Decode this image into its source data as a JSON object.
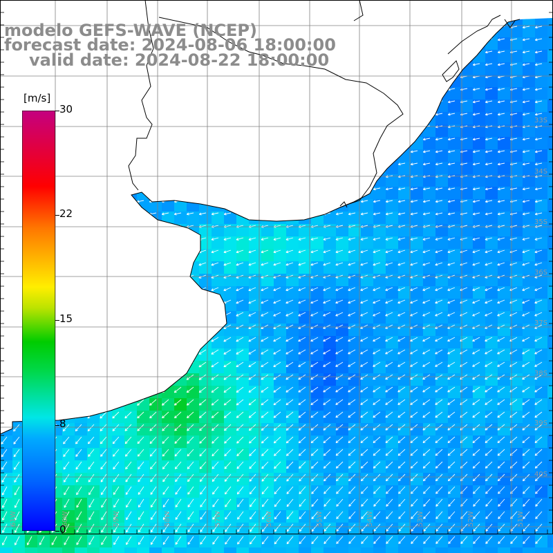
{
  "title": {
    "line1": "modelo GEFS-WAVE (NCEP)",
    "line2": "forecast date: 2024-08-06 18:00:00",
    "line3": "valid date: 2024-08-22 18:00:00"
  },
  "colorbar": {
    "unit": "[m/s]",
    "ticks": [
      {
        "label": "30",
        "value": 30
      },
      {
        "label": "22",
        "value": 22
      },
      {
        "label": "15",
        "value": 15
      },
      {
        "label": "8",
        "value": 8
      },
      {
        "label": "0",
        "value": 0
      }
    ],
    "min": 0,
    "max": 30
  },
  "map": {
    "latitude_labels": [
      "33S",
      "34S",
      "35S",
      "36S",
      "37S",
      "38S",
      "39S",
      "40S"
    ],
    "longitude_labels": [
      "61W",
      "60W",
      "59W",
      "58W",
      "57W",
      "56W",
      "55W",
      "54W",
      "53W",
      "52W",
      "51W"
    ],
    "colors": {
      "land": "#ffffff",
      "grid": "#808080",
      "coast": "#000000",
      "arrows": "#ffffff",
      "label": "#9a9a9a"
    }
  }
}
